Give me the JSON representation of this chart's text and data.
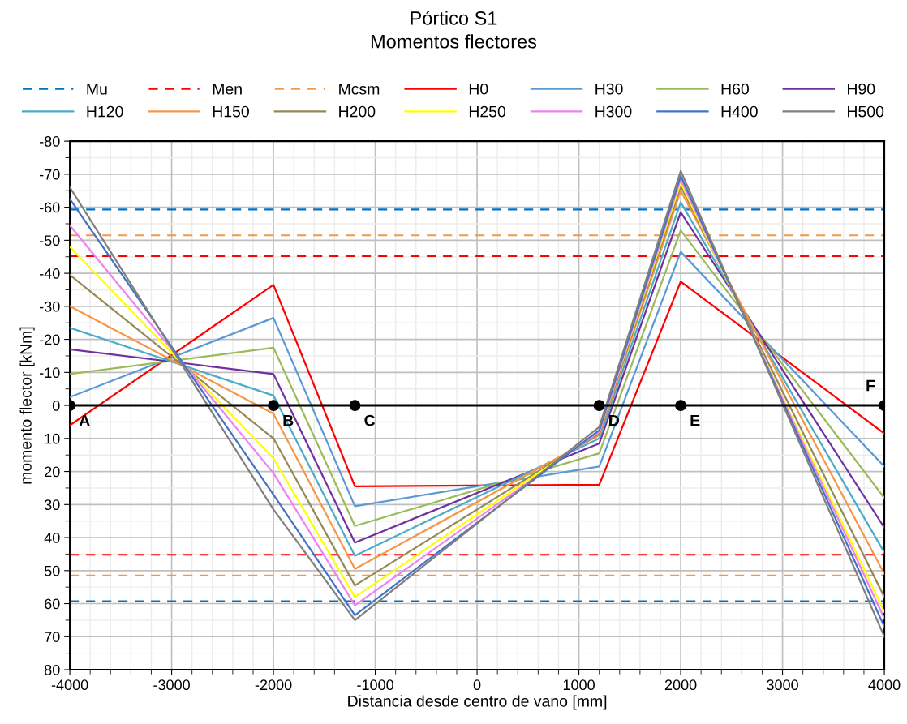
{
  "chart_data": {
    "type": "line",
    "title": "Pórtico S1\nMomentos flectores",
    "xlabel": "Distancia desde centro de vano [mm]",
    "ylabel": "momento flector [kNm]",
    "x": [
      -4000,
      -2000,
      -1200,
      1200,
      2000,
      4000
    ],
    "xlim": [
      -4000,
      4000
    ],
    "xticks": [
      -4000,
      -3000,
      -2000,
      -1000,
      0,
      1000,
      2000,
      3000,
      4000
    ],
    "ylim": [
      80,
      -80
    ],
    "yticks": [
      -80,
      -70,
      -60,
      -50,
      -40,
      -30,
      -20,
      -10,
      0,
      10,
      20,
      30,
      40,
      50,
      60,
      70,
      80
    ],
    "grid": true,
    "legend": "top",
    "marker": "none",
    "series": [
      {
        "name": "H0",
        "color": "#ff0000",
        "values": [
          6,
          -36.5,
          24.5,
          24,
          -37.5,
          8.5
        ]
      },
      {
        "name": "H30",
        "color": "#5b9bd5",
        "values": [
          -2.5,
          -26.5,
          30.5,
          18.5,
          -46.5,
          18.5
        ]
      },
      {
        "name": "H60",
        "color": "#9bbb59",
        "values": [
          -9.5,
          -17.5,
          36.5,
          14.5,
          -53,
          28
        ]
      },
      {
        "name": "H90",
        "color": "#7030a0",
        "values": [
          -17,
          -9.5,
          41.5,
          11.5,
          -58.5,
          37
        ]
      },
      {
        "name": "H120",
        "color": "#4bacc6",
        "values": [
          -23.5,
          -3,
          45.5,
          10,
          -61.5,
          44.5
        ]
      },
      {
        "name": "H150",
        "color": "#f79646",
        "values": [
          -30,
          2.5,
          49.5,
          9,
          -65,
          51
        ]
      },
      {
        "name": "H200",
        "color": "#948a54",
        "values": [
          -39.5,
          10,
          54.5,
          8.5,
          -66.5,
          58
        ]
      },
      {
        "name": "H250",
        "color": "#ffff00",
        "values": [
          -48,
          16,
          58,
          8,
          -67.5,
          62.5
        ]
      },
      {
        "name": "H300",
        "color": "#ee82ee",
        "values": [
          -54.5,
          20.5,
          60.5,
          8,
          -68.5,
          64.5
        ]
      },
      {
        "name": "H400",
        "color": "#4472c4",
        "values": [
          -62.5,
          27,
          63.5,
          7.5,
          -69.5,
          67
        ]
      },
      {
        "name": "H500",
        "color": "#808080",
        "values": [
          -66,
          31.5,
          65,
          6.5,
          -71,
          70
        ]
      },
      {
        "color": "#000000",
        "marker": "circle",
        "values": [
          0,
          0,
          0,
          0,
          0,
          0
        ]
      }
    ],
    "ref_lines": [
      {
        "axis": "y",
        "value": -59.3,
        "label": "Mu",
        "color": "#0070c0",
        "line_style": "dashed"
      },
      {
        "axis": "y",
        "value": -45.2,
        "label": "Men",
        "color": "#ff0000",
        "line_style": "dashed"
      },
      {
        "axis": "y",
        "value": -51.5,
        "label": "Mcsm",
        "color": "#f79646",
        "line_style": "dashed"
      },
      {
        "axis": "y",
        "value": 59.3,
        "color": "#0070c0",
        "line_style": "dashed"
      },
      {
        "axis": "y",
        "value": 45.2,
        "color": "#ff0000",
        "line_style": "dashed"
      },
      {
        "axis": "y",
        "value": 51.5,
        "color": "#f79646",
        "line_style": "dashed"
      }
    ],
    "annotations": [
      {
        "text": "A",
        "x": -4000,
        "y": 0
      },
      {
        "text": "B",
        "x": -2000,
        "y": 0
      },
      {
        "text": "C",
        "x": -1200,
        "y": 0
      },
      {
        "text": "D",
        "x": 1200,
        "y": 0
      },
      {
        "text": "E",
        "x": 2000,
        "y": 0
      },
      {
        "text": "F",
        "x": 4000,
        "y": 0
      }
    ]
  }
}
